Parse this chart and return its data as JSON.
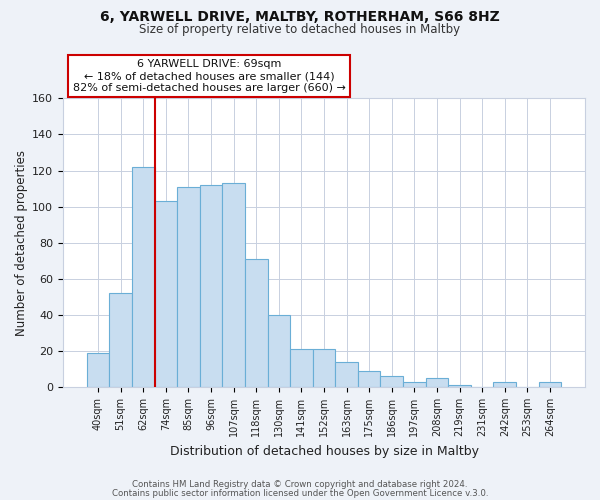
{
  "title1": "6, YARWELL DRIVE, MALTBY, ROTHERHAM, S66 8HZ",
  "title2": "Size of property relative to detached houses in Maltby",
  "xlabel": "Distribution of detached houses by size in Maltby",
  "ylabel": "Number of detached properties",
  "bar_labels": [
    "40sqm",
    "51sqm",
    "62sqm",
    "74sqm",
    "85sqm",
    "96sqm",
    "107sqm",
    "118sqm",
    "130sqm",
    "141sqm",
    "152sqm",
    "163sqm",
    "175sqm",
    "186sqm",
    "197sqm",
    "208sqm",
    "219sqm",
    "231sqm",
    "242sqm",
    "253sqm",
    "264sqm"
  ],
  "bar_values": [
    19,
    52,
    122,
    103,
    111,
    112,
    113,
    71,
    40,
    21,
    21,
    14,
    9,
    6,
    3,
    5,
    1,
    0,
    3,
    0,
    3
  ],
  "bar_color": "#c8ddf0",
  "bar_edge_color": "#6aaed6",
  "red_line_after_index": 2,
  "annotation_line1": "6 YARWELL DRIVE: 69sqm",
  "annotation_line2": "← 18% of detached houses are smaller (144)",
  "annotation_line3": "82% of semi-detached houses are larger (660) →",
  "annotation_box_edge": "#cc0000",
  "ylim": [
    0,
    160
  ],
  "yticks": [
    0,
    20,
    40,
    60,
    80,
    100,
    120,
    140,
    160
  ],
  "footer1": "Contains HM Land Registry data © Crown copyright and database right 2024.",
  "footer2": "Contains public sector information licensed under the Open Government Licence v.3.0.",
  "bg_color": "#eef2f8",
  "plot_bg_color": "#ffffff",
  "grid_color": "#c8d0e0"
}
